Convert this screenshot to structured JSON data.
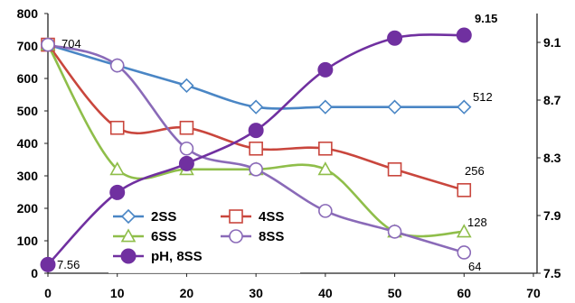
{
  "chart_data": {
    "type": "line",
    "x": [
      0,
      10,
      20,
      30,
      40,
      50,
      60
    ],
    "xlim": [
      0,
      70
    ],
    "xticks": [
      "0",
      "10",
      "20",
      "30",
      "40",
      "50",
      "60",
      "70"
    ],
    "ylim_left": [
      0,
      800
    ],
    "yticks_left": [
      "0",
      "100",
      "200",
      "300",
      "400",
      "500",
      "600",
      "700",
      "800"
    ],
    "ylim_right": [
      7.5,
      9.3
    ],
    "yticks_right": [
      "7.5",
      "7.9",
      "8.3",
      "8.7",
      "9.1"
    ],
    "grid": false,
    "legend_position": "bottom-left",
    "series": [
      {
        "name": "2SS",
        "axis": "left",
        "marker": "diamond",
        "color": "#4a86c5",
        "values": [
          704,
          640,
          578,
          512,
          512,
          512,
          512
        ]
      },
      {
        "name": "4SS",
        "axis": "left",
        "marker": "square",
        "color": "#c9463d",
        "values": [
          704,
          448,
          448,
          384,
          384,
          320,
          256
        ]
      },
      {
        "name": "6SS",
        "axis": "left",
        "marker": "triangle",
        "color": "#8fbe4a",
        "values": [
          704,
          320,
          320,
          320,
          320,
          128,
          128
        ]
      },
      {
        "name": "8SS",
        "axis": "left",
        "marker": "circle-open",
        "color": "#8a6ab8",
        "values": [
          704,
          640,
          384,
          320,
          192,
          128,
          64
        ]
      },
      {
        "name": "pH, 8SS",
        "axis": "right",
        "marker": "circle-filled",
        "color": "#7030a0",
        "values": [
          7.56,
          8.06,
          8.26,
          8.49,
          8.91,
          9.13,
          9.15
        ]
      }
    ],
    "annotations": [
      "704",
      "512",
      "256",
      "128",
      "64",
      "7.56",
      "9.15"
    ]
  }
}
